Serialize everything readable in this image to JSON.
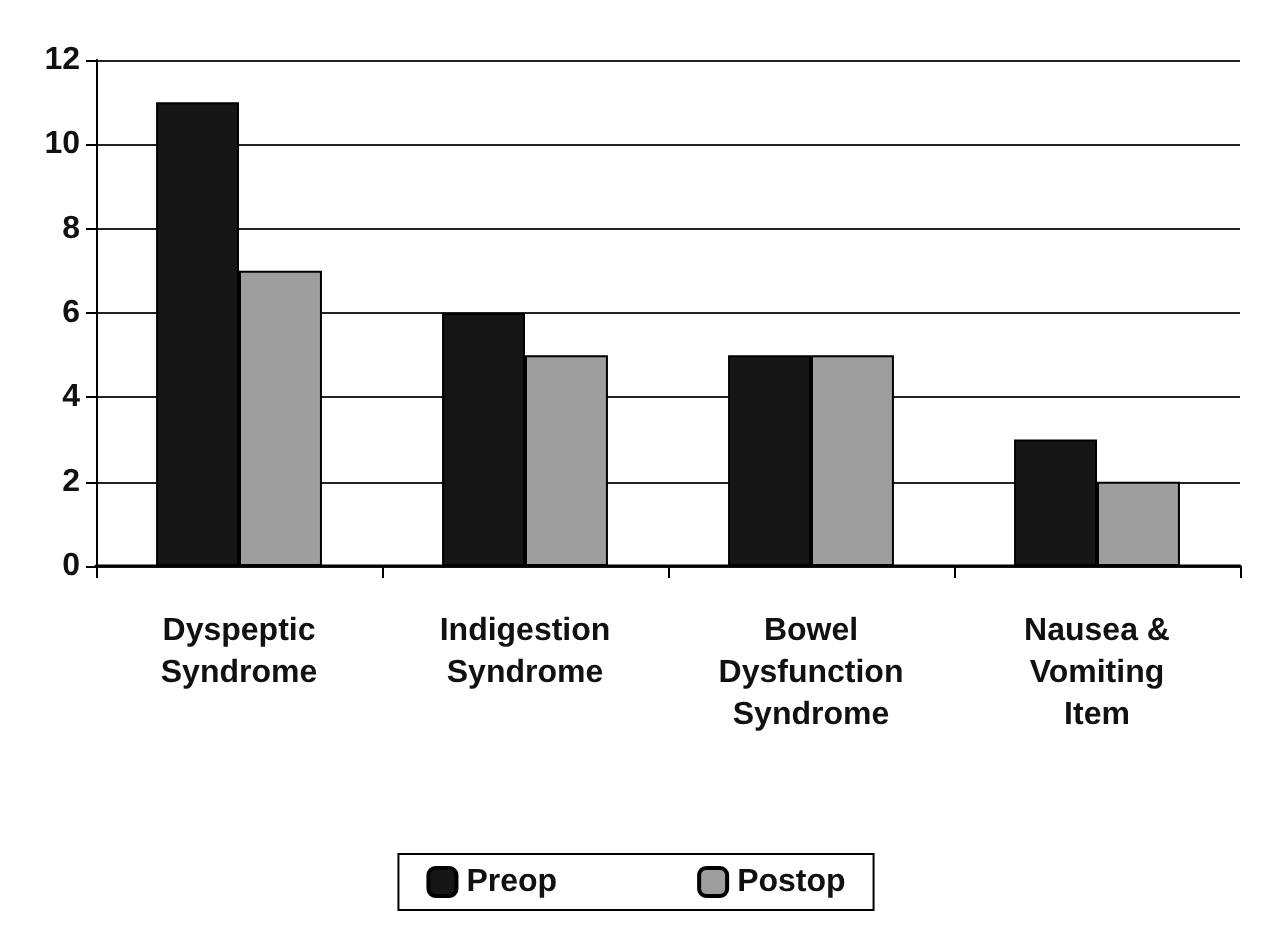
{
  "chart_data": {
    "type": "bar",
    "categories": [
      "Dyspeptic\nSyndrome",
      "Indigestion\nSyndrome",
      "Bowel\nDysfunction\nSyndrome",
      "Nausea &\nVomiting\nItem"
    ],
    "series": [
      {
        "name": "Preop",
        "color": "#161616",
        "values": [
          11,
          6,
          5,
          3
        ]
      },
      {
        "name": "Postop",
        "color": "#9d9e9d",
        "values": [
          7,
          5,
          5,
          2
        ]
      }
    ],
    "ylim": [
      0,
      12
    ],
    "yticks": [
      0,
      2,
      4,
      6,
      8,
      10,
      12
    ],
    "grid": "y",
    "legend": "bottom"
  }
}
